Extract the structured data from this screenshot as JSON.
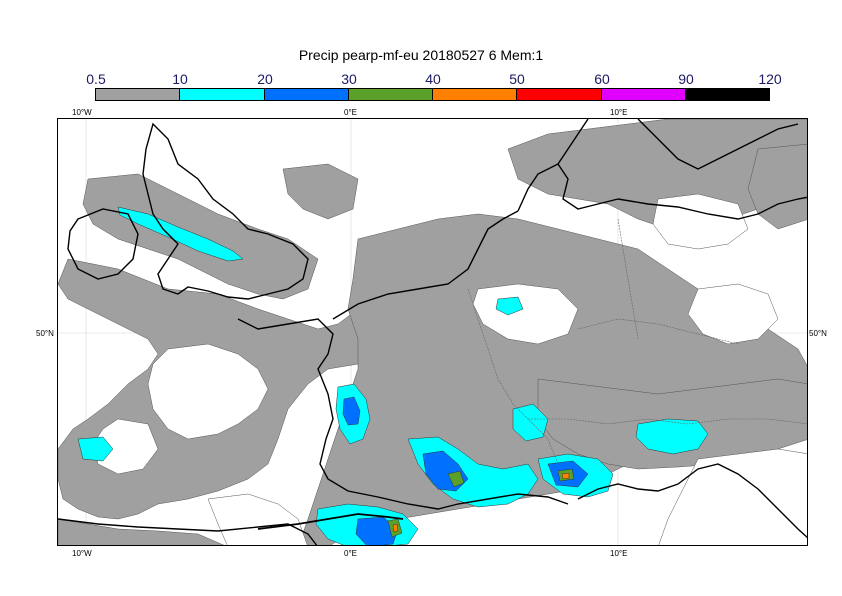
{
  "title": "Precip pearp-mf-eu 20180527 6 Mem:1",
  "colorbar": {
    "levels": [
      "0.5",
      "10",
      "20",
      "30",
      "40",
      "50",
      "60",
      "90",
      "120"
    ],
    "colors": [
      "#a0a0a0",
      "#00ffff",
      "#0070ff",
      "#5aa02a",
      "#ff8000",
      "#ff0000",
      "#e000ff",
      "#000000"
    ]
  },
  "axes": {
    "lon_top": [
      "10°W",
      "0°E",
      "10°E"
    ],
    "lon_bottom": [
      "10°W",
      "0°E",
      "10°E"
    ],
    "lat_left": [
      "50°N"
    ],
    "lat_right": [
      "50°N"
    ]
  }
}
